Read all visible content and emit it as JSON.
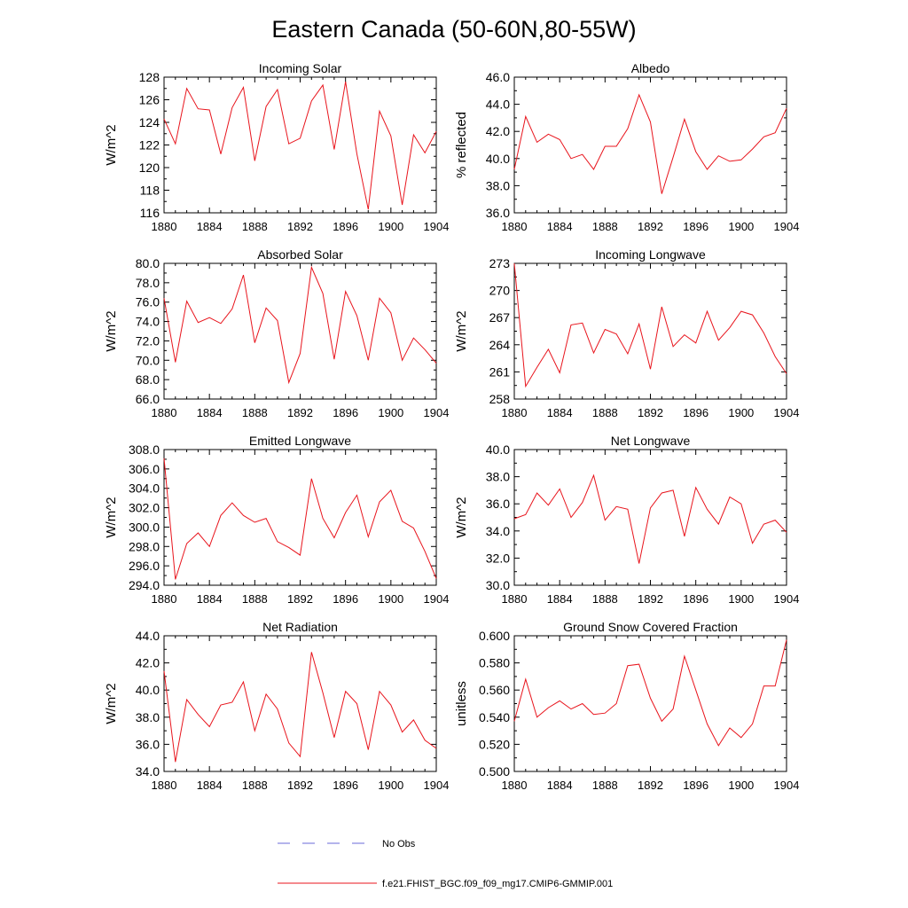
{
  "figure_title": "Eastern Canada (50-60N,80-55W)",
  "legend": {
    "obs_label": "No Obs",
    "obs_color": "#6a6ad8",
    "model_label": "f.e21.FHIST_BGC.f09_f09_mg17.CMIP6-GMMIP.001",
    "model_color": "#e8141c"
  },
  "chart_data": [
    {
      "type": "line",
      "title": "Incoming Solar",
      "xlabel": "",
      "ylabel": "W/m^2",
      "xlim": [
        1880,
        1904
      ],
      "ylim": [
        116,
        128
      ],
      "x_ticks": [
        "1880",
        "1884",
        "1888",
        "1892",
        "1896",
        "1900",
        "1904"
      ],
      "y_ticks": [
        "116",
        "118",
        "120",
        "122",
        "124",
        "126",
        "128"
      ],
      "x": [
        1880,
        1881,
        1882,
        1883,
        1884,
        1885,
        1886,
        1887,
        1888,
        1889,
        1890,
        1891,
        1892,
        1893,
        1894,
        1895,
        1896,
        1897,
        1898,
        1899,
        1900,
        1901,
        1902,
        1903,
        1904
      ],
      "values": [
        124.3,
        122.1,
        127.0,
        125.2,
        125.1,
        121.2,
        125.3,
        127.1,
        120.6,
        125.4,
        126.9,
        122.1,
        122.6,
        125.9,
        127.3,
        121.6,
        127.6,
        121.2,
        116.3,
        125.0,
        122.8,
        116.7,
        122.9,
        121.3,
        123.2
      ]
    },
    {
      "type": "line",
      "title": "Albedo",
      "xlabel": "",
      "ylabel": "% reflected",
      "xlim": [
        1880,
        1904
      ],
      "ylim": [
        36,
        46
      ],
      "x_ticks": [
        "1880",
        "1884",
        "1888",
        "1892",
        "1896",
        "1900",
        "1904"
      ],
      "y_ticks": [
        "36.0",
        "38.0",
        "40.0",
        "42.0",
        "44.0",
        "46.0"
      ],
      "x": [
        1880,
        1881,
        1882,
        1883,
        1884,
        1885,
        1886,
        1887,
        1888,
        1889,
        1890,
        1891,
        1892,
        1893,
        1894,
        1895,
        1896,
        1897,
        1898,
        1899,
        1900,
        1901,
        1902,
        1903,
        1904
      ],
      "values": [
        39.2,
        43.1,
        41.2,
        41.8,
        41.4,
        40.0,
        40.3,
        39.2,
        40.9,
        40.9,
        42.2,
        44.7,
        42.7,
        37.4,
        40.1,
        42.9,
        40.5,
        39.2,
        40.2,
        39.8,
        39.9,
        40.7,
        41.6,
        41.9,
        43.7
      ]
    },
    {
      "type": "line",
      "title": "Absorbed Solar",
      "xlabel": "",
      "ylabel": "W/m^2",
      "xlim": [
        1880,
        1904
      ],
      "ylim": [
        66,
        80
      ],
      "x_ticks": [
        "1880",
        "1884",
        "1888",
        "1892",
        "1896",
        "1900",
        "1904"
      ],
      "y_ticks": [
        "66.0",
        "68.0",
        "70.0",
        "72.0",
        "74.0",
        "76.0",
        "78.0",
        "80.0"
      ],
      "x": [
        1880,
        1881,
        1882,
        1883,
        1884,
        1885,
        1886,
        1887,
        1888,
        1889,
        1890,
        1891,
        1892,
        1893,
        1894,
        1895,
        1896,
        1897,
        1898,
        1899,
        1900,
        1901,
        1902,
        1903,
        1904
      ],
      "values": [
        76.4,
        69.8,
        76.1,
        73.9,
        74.4,
        73.8,
        75.3,
        78.8,
        71.8,
        75.4,
        74.1,
        67.7,
        70.7,
        79.6,
        76.9,
        70.1,
        77.1,
        74.6,
        70.0,
        76.4,
        74.9,
        70.0,
        72.3,
        71.1,
        69.7
      ]
    },
    {
      "type": "line",
      "title": "Incoming Longwave",
      "xlabel": "",
      "ylabel": "W/m^2",
      "xlim": [
        1880,
        1904
      ],
      "ylim": [
        258,
        273
      ],
      "x_ticks": [
        "1880",
        "1884",
        "1888",
        "1892",
        "1896",
        "1900",
        "1904"
      ],
      "y_ticks": [
        "258",
        "261",
        "264",
        "267",
        "270",
        "273"
      ],
      "x": [
        1880,
        1881,
        1882,
        1883,
        1884,
        1885,
        1886,
        1887,
        1888,
        1889,
        1890,
        1891,
        1892,
        1893,
        1894,
        1895,
        1896,
        1897,
        1898,
        1899,
        1900,
        1901,
        1902,
        1903,
        1904
      ],
      "values": [
        273.0,
        259.4,
        261.5,
        263.5,
        260.9,
        266.2,
        266.4,
        263.1,
        265.7,
        265.2,
        263.0,
        266.3,
        261.3,
        268.2,
        263.8,
        265.1,
        264.2,
        267.7,
        264.5,
        265.9,
        267.7,
        267.3,
        265.3,
        262.7,
        260.8
      ]
    },
    {
      "type": "line",
      "title": "Emitted Longwave",
      "xlabel": "",
      "ylabel": "W/m^2",
      "xlim": [
        1880,
        1904
      ],
      "ylim": [
        294,
        308
      ],
      "x_ticks": [
        "1880",
        "1884",
        "1888",
        "1892",
        "1896",
        "1900",
        "1904"
      ],
      "y_ticks": [
        "294.0",
        "296.0",
        "298.0",
        "300.0",
        "302.0",
        "304.0",
        "306.0",
        "308.0"
      ],
      "x": [
        1880,
        1881,
        1882,
        1883,
        1884,
        1885,
        1886,
        1887,
        1888,
        1889,
        1890,
        1891,
        1892,
        1893,
        1894,
        1895,
        1896,
        1897,
        1898,
        1899,
        1900,
        1901,
        1902,
        1903,
        1904
      ],
      "values": [
        307.1,
        294.6,
        298.3,
        299.4,
        298.0,
        301.2,
        302.5,
        301.2,
        300.5,
        300.9,
        298.5,
        297.9,
        297.1,
        305.0,
        300.9,
        298.9,
        301.5,
        303.3,
        299.0,
        302.6,
        303.8,
        300.6,
        299.9,
        297.5,
        294.7
      ]
    },
    {
      "type": "line",
      "title": "Net Longwave",
      "xlabel": "",
      "ylabel": "W/m^2",
      "xlim": [
        1880,
        1904
      ],
      "ylim": [
        30,
        40
      ],
      "x_ticks": [
        "1880",
        "1884",
        "1888",
        "1892",
        "1896",
        "1900",
        "1904"
      ],
      "y_ticks": [
        "30.0",
        "32.0",
        "34.0",
        "36.0",
        "38.0",
        "40.0"
      ],
      "x": [
        1880,
        1881,
        1882,
        1883,
        1884,
        1885,
        1886,
        1887,
        1888,
        1889,
        1890,
        1891,
        1892,
        1893,
        1894,
        1895,
        1896,
        1897,
        1898,
        1899,
        1900,
        1901,
        1902,
        1903,
        1904
      ],
      "values": [
        34.9,
        35.2,
        36.8,
        35.9,
        37.1,
        35.0,
        36.1,
        38.1,
        34.8,
        35.8,
        35.6,
        31.6,
        35.7,
        36.8,
        37.0,
        33.6,
        37.2,
        35.6,
        34.5,
        36.5,
        36.0,
        33.1,
        34.5,
        34.8,
        33.9
      ]
    },
    {
      "type": "line",
      "title": "Net Radiation",
      "xlabel": "",
      "ylabel": "W/m^2",
      "xlim": [
        1880,
        1904
      ],
      "ylim": [
        34,
        44
      ],
      "x_ticks": [
        "1880",
        "1884",
        "1888",
        "1892",
        "1896",
        "1900",
        "1904"
      ],
      "y_ticks": [
        "34.0",
        "36.0",
        "38.0",
        "40.0",
        "42.0",
        "44.0"
      ],
      "x": [
        1880,
        1881,
        1882,
        1883,
        1884,
        1885,
        1886,
        1887,
        1888,
        1889,
        1890,
        1891,
        1892,
        1893,
        1894,
        1895,
        1896,
        1897,
        1898,
        1899,
        1900,
        1901,
        1902,
        1903,
        1904
      ],
      "values": [
        41.4,
        34.7,
        39.3,
        38.2,
        37.3,
        38.9,
        39.1,
        40.6,
        37.0,
        39.7,
        38.6,
        36.1,
        35.1,
        42.8,
        39.8,
        36.5,
        39.9,
        39.0,
        35.6,
        39.9,
        38.9,
        36.9,
        37.8,
        36.3,
        35.7
      ]
    },
    {
      "type": "line",
      "title": "Ground Snow Covered Fraction",
      "xlabel": "",
      "ylabel": "unitless",
      "xlim": [
        1880,
        1904
      ],
      "ylim": [
        0.5,
        0.6
      ],
      "x_ticks": [
        "1880",
        "1884",
        "1888",
        "1892",
        "1896",
        "1900",
        "1904"
      ],
      "y_ticks": [
        "0.500",
        "0.520",
        "0.540",
        "0.560",
        "0.580",
        "0.600"
      ],
      "x": [
        1880,
        1881,
        1882,
        1883,
        1884,
        1885,
        1886,
        1887,
        1888,
        1889,
        1890,
        1891,
        1892,
        1893,
        1894,
        1895,
        1896,
        1897,
        1898,
        1899,
        1900,
        1901,
        1902,
        1903,
        1904
      ],
      "values": [
        0.537,
        0.568,
        0.54,
        0.547,
        0.552,
        0.546,
        0.55,
        0.542,
        0.543,
        0.55,
        0.578,
        0.579,
        0.554,
        0.537,
        0.546,
        0.585,
        0.56,
        0.535,
        0.519,
        0.532,
        0.525,
        0.535,
        0.563,
        0.563,
        0.597
      ]
    }
  ]
}
